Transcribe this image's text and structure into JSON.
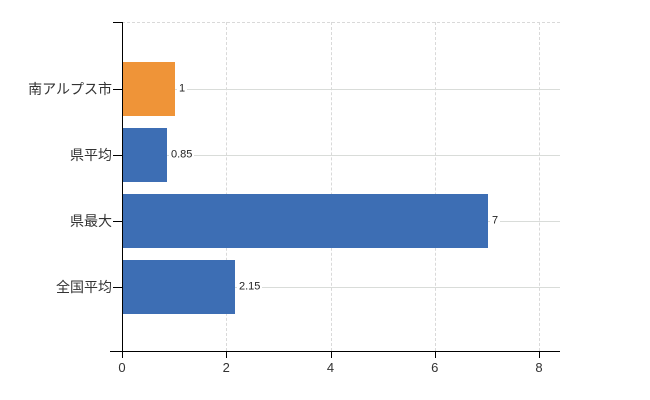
{
  "page": {
    "background": "#ffffff"
  },
  "colors": {
    "bar_orange": "#ef9438",
    "bar_blue": "#3d6eb4",
    "gridline": "#d9d9d9",
    "axis": "#000000",
    "category_text": "#333333",
    "value_text": "#222222"
  },
  "chart_data": {
    "type": "bar",
    "orientation": "horizontal",
    "title": "",
    "xlabel": "",
    "ylabel": "",
    "categories": [
      "南アルプス市",
      "県平均",
      "県最大",
      "全国平均"
    ],
    "values": [
      1,
      0.85,
      7,
      2.15
    ],
    "value_labels": [
      "1",
      "0.85",
      "7",
      "2.15"
    ],
    "bar_colors": [
      "#ef9438",
      "#3d6eb4",
      "#3d6eb4",
      "#3d6eb4"
    ],
    "xlim": [
      0,
      8.4
    ],
    "x_ticks": [
      0,
      2,
      4,
      6,
      8
    ],
    "x_tick_labels": [
      "0",
      "2",
      "4",
      "6",
      "8"
    ],
    "grid": {
      "vertical_gridlines": "dashed",
      "horizontal_row_gridlines": "solid",
      "top_border": "dashed"
    },
    "legend": "none"
  }
}
